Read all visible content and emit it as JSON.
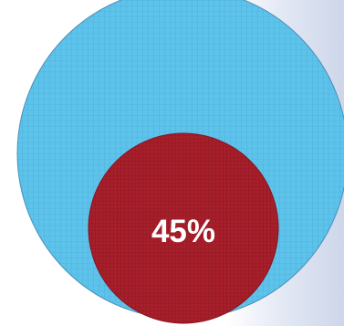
{
  "diagram": {
    "type": "nested-circles",
    "outer_circle": {
      "fill_color": "#5ec3ea",
      "grid_color": "#3a9dd3",
      "outline_color": "#4a8fb8"
    },
    "inner_circle": {
      "share_percent": 45,
      "label": "45%",
      "fill_color": "#a61f2b",
      "grid_color": "#7a0f18",
      "label_color": "#ffffff"
    }
  }
}
